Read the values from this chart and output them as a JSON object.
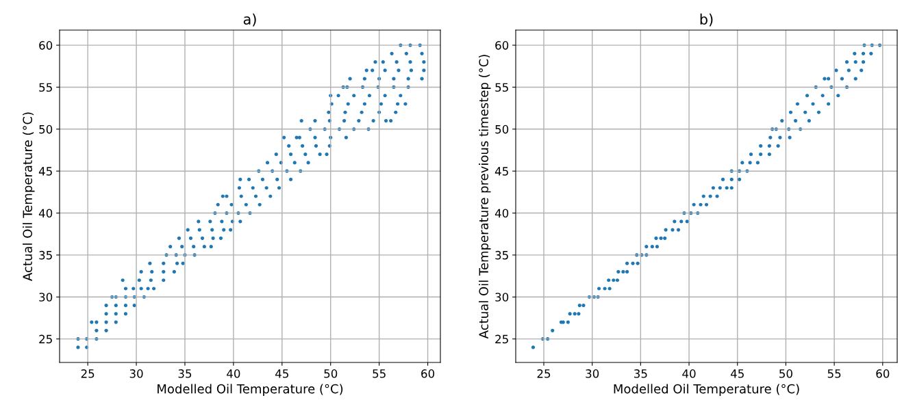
{
  "chart_data": [
    {
      "type": "scatter",
      "title": "a)",
      "xlabel": "Modelled Oil Temperature (°C)",
      "ylabel": "Actual Oil Temperature (°C)",
      "xlim": [
        22.1,
        61.3
      ],
      "ylim": [
        22.2,
        61.8
      ],
      "xticks": [
        25,
        30,
        35,
        40,
        45,
        50,
        55,
        60
      ],
      "yticks": [
        25,
        30,
        35,
        40,
        45,
        50,
        55,
        60
      ],
      "grid": true,
      "marker": "circle",
      "series": [
        {
          "color": "#1f77b4",
          "x": [
            57.2,
            58.2,
            59.2,
            56.3,
            57.8,
            59.4,
            54.6,
            55.4,
            56.8,
            58.2,
            59.6,
            53.7,
            54.3,
            55.6,
            57.0,
            58.3,
            59.6,
            52.0,
            53.5,
            55.0,
            56.5,
            58.0,
            59.4,
            51.3,
            51.7,
            53.3,
            54.9,
            56.5,
            58.0,
            50.0,
            50.8,
            52.4,
            54.0,
            55.6,
            57.2,
            50.1,
            51.8,
            53.5,
            55.2,
            56.9,
            57.7,
            49.8,
            51.5,
            53.2,
            55.0,
            56.7,
            47.0,
            48.4,
            49.9,
            51.4,
            52.9,
            54.4,
            55.7,
            56.2,
            47.9,
            49.4,
            50.9,
            52.4,
            53.9,
            45.2,
            46.5,
            46.8,
            48.4,
            50.0,
            51.6,
            45.7,
            47.1,
            48.5,
            49.9,
            44.4,
            45.9,
            47.4,
            48.9,
            49.6,
            43.5,
            44.9,
            46.3,
            47.7,
            42.6,
            44.0,
            45.5,
            46.9,
            40.7,
            41.6,
            43.0,
            44.5,
            45.9,
            40.6,
            42.0,
            43.4,
            44.7,
            38.9,
            39.3,
            40.8,
            42.3,
            43.8,
            38.4,
            39.8,
            41.3,
            42.7,
            38.1,
            39.3,
            40.5,
            41.7,
            36.4,
            37.6,
            38.8,
            39.9,
            40.7,
            35.3,
            36.5,
            37.8,
            39.0,
            39.7,
            34.4,
            35.6,
            36.8,
            37.9,
            38.7,
            33.5,
            34.7,
            35.9,
            37.0,
            37.7,
            33.1,
            34.1,
            35.0,
            36.0,
            31.4,
            32.8,
            34.2,
            34.8,
            30.5,
            31.6,
            32.8,
            33.9,
            28.6,
            30.3,
            31.5,
            32.8,
            28.9,
            29.7,
            30.5,
            31.2,
            31.8,
            27.5,
            27.9,
            28.9,
            29.8,
            30.8,
            26.9,
            27.9,
            28.9,
            29.8,
            26.9,
            27.9,
            28.9,
            25.4,
            25.9,
            26.9,
            27.9,
            25.9,
            26.9,
            24.0,
            24.9,
            25.9,
            24.0,
            24.9
          ],
          "values": [
            60,
            60,
            60,
            59,
            59,
            59,
            58,
            58,
            58,
            58,
            58,
            57,
            57,
            57,
            57,
            57,
            57,
            56,
            56,
            56,
            56,
            56,
            56,
            55,
            55,
            55,
            55,
            55,
            55,
            54,
            54,
            54,
            54,
            54,
            54,
            53,
            53,
            53,
            53,
            53,
            53,
            52,
            52,
            52,
            52,
            52,
            51,
            51,
            51,
            51,
            51,
            51,
            51,
            51,
            50,
            50,
            50,
            50,
            50,
            49,
            49,
            49,
            49,
            49,
            49,
            48,
            48,
            48,
            48,
            47,
            47,
            47,
            47,
            47,
            46,
            46,
            46,
            46,
            45,
            45,
            45,
            45,
            44,
            44,
            44,
            44,
            44,
            43,
            43,
            43,
            43,
            42,
            42,
            42,
            42,
            42,
            41,
            41,
            41,
            41,
            40,
            40,
            40,
            40,
            39,
            39,
            39,
            39,
            39,
            38,
            38,
            38,
            38,
            38,
            37,
            37,
            37,
            37,
            37,
            36,
            36,
            36,
            36,
            36,
            35,
            35,
            35,
            35,
            34,
            34,
            34,
            34,
            33,
            33,
            33,
            33,
            32,
            32,
            32,
            32,
            31,
            31,
            31,
            31,
            31,
            30,
            30,
            30,
            30,
            30,
            29,
            29,
            29,
            29,
            28,
            28,
            28,
            27,
            27,
            27,
            27,
            26,
            26,
            25,
            25,
            25,
            24,
            24
          ]
        }
      ]
    },
    {
      "type": "scatter",
      "title": "b)",
      "xlabel": "Modelled Oil Temperature (°C)",
      "ylabel": "Actual Oil Temperature previous timestep (°C)",
      "xlim": [
        22.1,
        61.5
      ],
      "ylim": [
        22.2,
        61.8
      ],
      "xticks": [
        25,
        30,
        35,
        40,
        45,
        50,
        55,
        60
      ],
      "yticks": [
        25,
        30,
        35,
        40,
        45,
        50,
        55,
        60
      ],
      "grid": true,
      "marker": "circle",
      "series": [
        {
          "color": "#1f77b4",
          "x": [
            58.1,
            58.9,
            59.7,
            57.1,
            58.0,
            58.8,
            56.3,
            57.2,
            58.0,
            55.2,
            56.5,
            57.8,
            54.0,
            54.4,
            55.8,
            57.2,
            53.1,
            54.7,
            56.3,
            52.2,
            53.8,
            55.4,
            51.2,
            52.8,
            54.4,
            50.5,
            52.0,
            53.4,
            49.6,
            51.0,
            52.4,
            48.6,
            49.0,
            50.3,
            51.5,
            48.4,
            49.4,
            50.4,
            47.4,
            48.3,
            49.2,
            46.4,
            47.4,
            48.3,
            45.5,
            46.3,
            47.1,
            44.4,
            45.2,
            46.0,
            43.5,
            44.4,
            45.2,
            42.5,
            43.2,
            43.9,
            44.4,
            41.5,
            42.2,
            42.9,
            40.5,
            41.2,
            41.8,
            39.5,
            40.2,
            40.9,
            38.5,
            39.2,
            39.8,
            37.6,
            38.3,
            38.9,
            36.6,
            37.1,
            37.5,
            35.6,
            36.2,
            36.7,
            34.6,
            35.1,
            35.6,
            33.6,
            34.2,
            34.7,
            32.7,
            33.2,
            33.6,
            31.7,
            32.2,
            32.6,
            30.7,
            31.3,
            31.8,
            29.7,
            30.2,
            30.6,
            28.7,
            29.1,
            27.7,
            28.2,
            28.6,
            26.8,
            27.0,
            27.5,
            25.9,
            24.9,
            25.4,
            23.9
          ],
          "values": [
            60,
            60,
            60,
            59,
            59,
            59,
            58,
            58,
            58,
            57,
            57,
            57,
            56,
            56,
            56,
            56,
            55,
            55,
            55,
            54,
            54,
            54,
            53,
            53,
            53,
            52,
            52,
            52,
            51,
            51,
            51,
            50,
            50,
            50,
            50,
            49,
            49,
            49,
            48,
            48,
            48,
            47,
            47,
            47,
            46,
            46,
            46,
            45,
            45,
            45,
            44,
            44,
            44,
            43,
            43,
            43,
            43,
            42,
            42,
            42,
            41,
            41,
            41,
            40,
            40,
            40,
            39,
            39,
            39,
            38,
            38,
            38,
            37,
            37,
            37,
            36,
            36,
            36,
            35,
            35,
            35,
            34,
            34,
            34,
            33,
            33,
            33,
            32,
            32,
            32,
            31,
            31,
            31,
            30,
            30,
            30,
            29,
            29,
            28,
            28,
            28,
            27,
            27,
            27,
            26,
            25,
            25,
            24
          ]
        }
      ]
    }
  ]
}
